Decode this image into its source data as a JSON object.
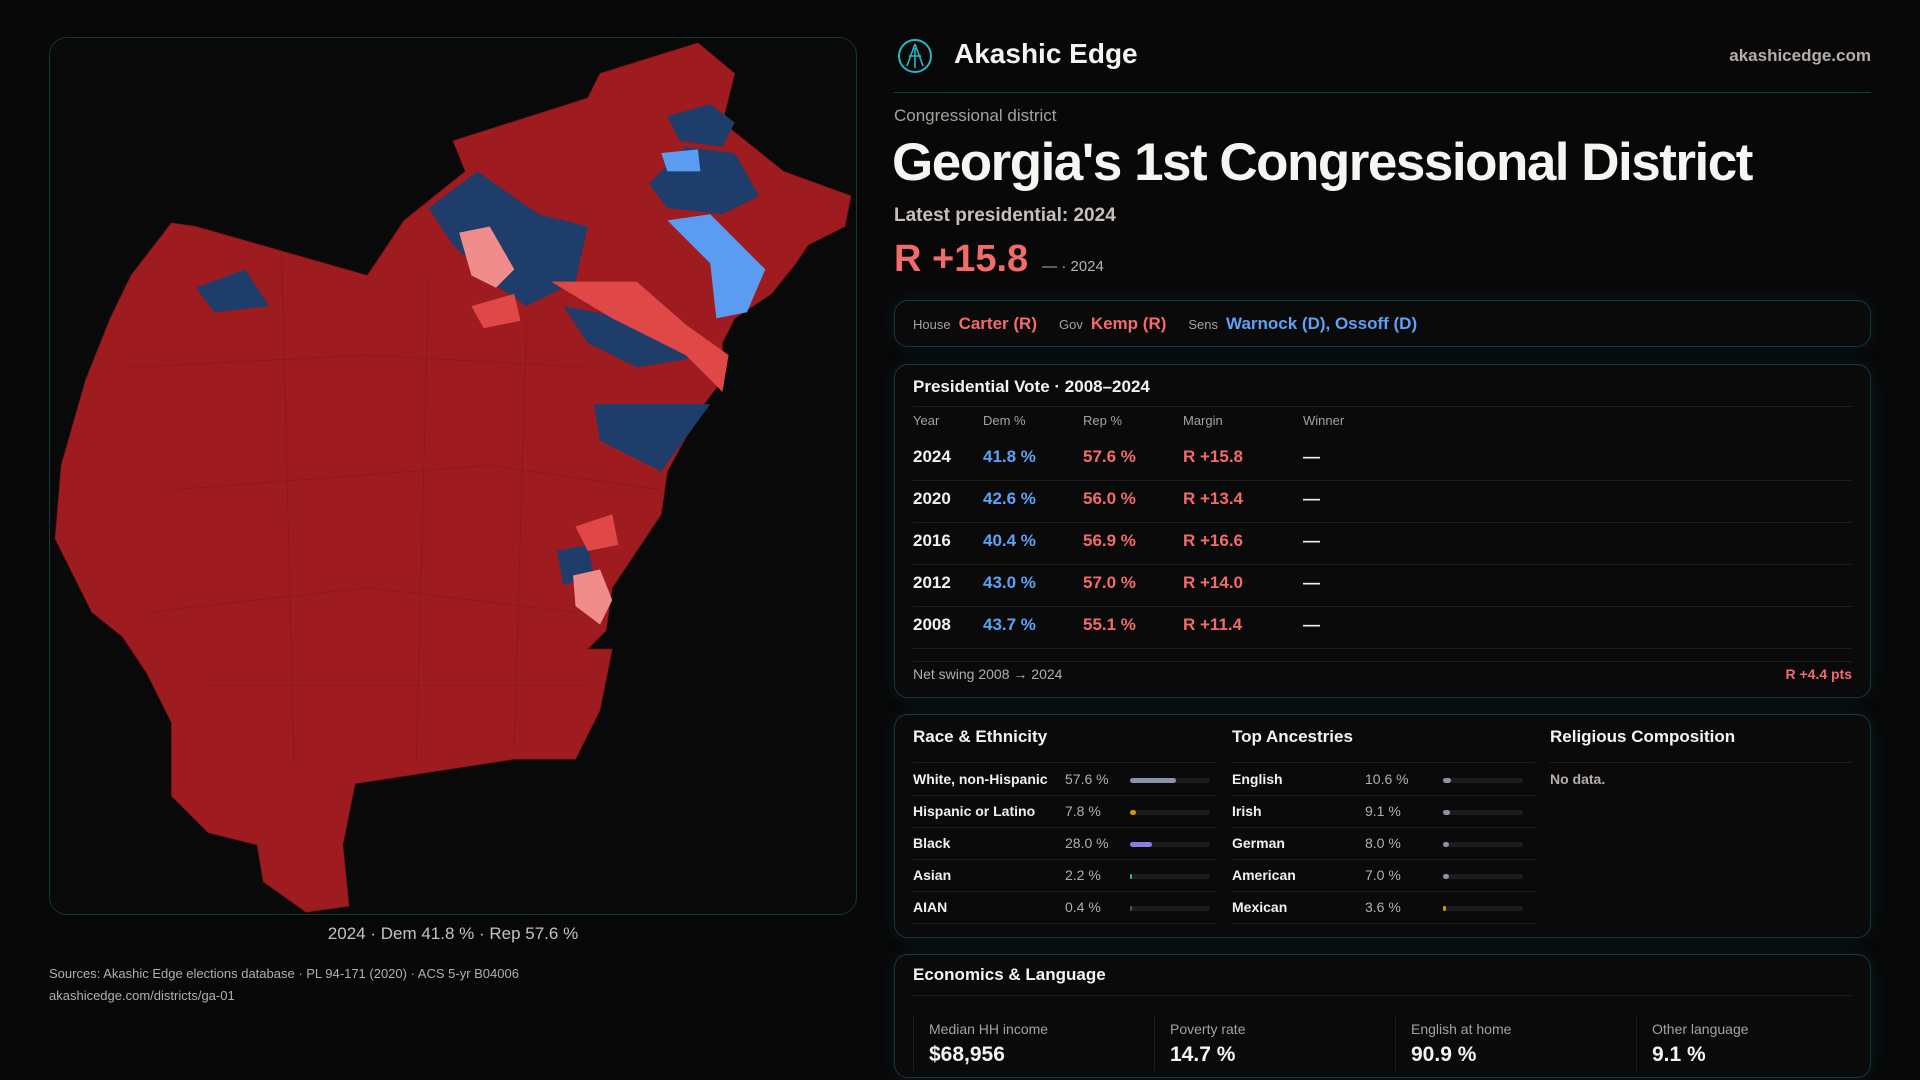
{
  "brand": {
    "name": "Akashic Edge",
    "site": "akashicedge.com",
    "logo_icon": "akashic-logo-icon"
  },
  "header": {
    "kicker": "Congressional district",
    "title": "Georgia's 1st Congressional District",
    "latest": "Latest presidential: 2024",
    "margin": "R +15.8",
    "margin_sub": "— · 2024"
  },
  "officials": {
    "house_label": "House",
    "house": "Carter (R)",
    "gov_label": "Gov",
    "gov": "Kemp (R)",
    "sens_label": "Sens",
    "sens": "Warnock (D), Ossoff (D)"
  },
  "colors": {
    "rep": "#f26b6b",
    "dem": "#5ea1f5",
    "map_rep_strong": "#9e1b1f",
    "map_rep_lean": "#e04848",
    "map_rep_light": "#f08c8c",
    "map_dem_strong": "#1f3d6b",
    "map_dem_light": "#5b9cf0",
    "accent": "#2bb5c4"
  },
  "map": {
    "caption": "2024 · Dem 41.8 % · Rep 57.6 %"
  },
  "presidential": {
    "title": "Presidential Vote · 2008–2024",
    "headers": [
      "Year",
      "Dem %",
      "Rep %",
      "Margin",
      "Winner"
    ],
    "rows": [
      [
        "2024",
        "41.8 %",
        "57.6 %",
        "R +15.8",
        "—"
      ],
      [
        "2020",
        "42.6 %",
        "56.0 %",
        "R +13.4",
        "—"
      ],
      [
        "2016",
        "40.4 %",
        "56.9 %",
        "R +16.6",
        "—"
      ],
      [
        "2012",
        "43.0 %",
        "57.0 %",
        "R +14.0",
        "—"
      ],
      [
        "2008",
        "43.7 %",
        "55.1 %",
        "R +11.4",
        "—"
      ]
    ],
    "swing_label": "Net swing 2008 → 2024",
    "swing": "R +4.4 pts"
  },
  "race": {
    "title": "Race & Ethnicity",
    "items": [
      {
        "label": "White, non-Hispanic",
        "value": "57.6 %",
        "pct": 57.6,
        "color": "#8a94a6"
      },
      {
        "label": "Hispanic or Latino",
        "value": "7.8 %",
        "pct": 7.8,
        "color": "#e0900e"
      },
      {
        "label": "Black",
        "value": "28.0 %",
        "pct": 28.0,
        "color": "#8f7ae0"
      },
      {
        "label": "Asian",
        "value": "2.2 %",
        "pct": 2.2,
        "color": "#2fbf8f"
      },
      {
        "label": "AIAN",
        "value": "0.4 %",
        "pct": 0.4,
        "color": "#555"
      }
    ]
  },
  "ancestry": {
    "title": "Top Ancestries",
    "items": [
      {
        "label": "English",
        "value": "10.6 %",
        "pct": 10.6,
        "color": "#8a94a6"
      },
      {
        "label": "Irish",
        "value": "9.1 %",
        "pct": 9.1,
        "color": "#8a94a6"
      },
      {
        "label": "German",
        "value": "8.0 %",
        "pct": 8.0,
        "color": "#8a94a6"
      },
      {
        "label": "American",
        "value": "7.0 %",
        "pct": 7.0,
        "color": "#8a94a6"
      },
      {
        "label": "Mexican",
        "value": "3.6 %",
        "pct": 3.6,
        "color": "#e0900e"
      }
    ]
  },
  "religion": {
    "title": "Religious Composition",
    "empty": "No data."
  },
  "economics": {
    "title": "Economics & Language",
    "stats": [
      {
        "label": "Median HH income",
        "value": "$68,956"
      },
      {
        "label": "Poverty rate",
        "value": "14.7 %"
      },
      {
        "label": "English at home",
        "value": "90.9 %"
      },
      {
        "label": "Other language",
        "value": "9.1 %"
      }
    ]
  },
  "footer": {
    "sources": "Sources: Akashic Edge elections database · PL 94-171 (2020) · ACS 5-yr B04006",
    "url": "akashicedge.com/districts/ga-01"
  }
}
